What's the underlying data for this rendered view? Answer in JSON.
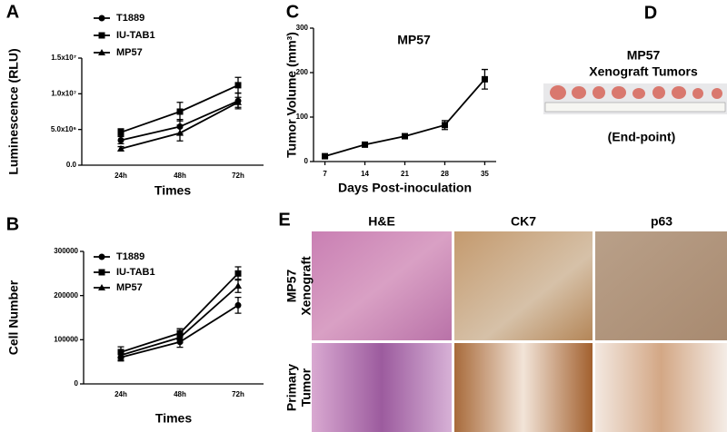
{
  "chart_data": [
    {
      "panel": "A",
      "type": "line",
      "y_label": "Luminescence (RLU)",
      "x_label": "Times",
      "categories": [
        "24h",
        "48h",
        "72h"
      ],
      "ylim": [
        0,
        15000000
      ],
      "yticks": [
        {
          "value": 0,
          "label": "0.0"
        },
        {
          "value": 5000000,
          "label": "5.0x10⁶"
        },
        {
          "value": 10000000,
          "label": "1.0x10⁷"
        },
        {
          "value": 15000000,
          "label": "1.5x10⁷"
        }
      ],
      "legend": "upper left",
      "series": [
        {
          "name": "T1889",
          "color": "#000000",
          "marker": "circle",
          "values": [
            3500000,
            5400000,
            9000000
          ],
          "errors": [
            500000,
            1000000,
            1100000
          ]
        },
        {
          "name": "IU-TAB1",
          "color": "#000000",
          "marker": "square",
          "values": [
            4600000,
            7500000,
            11200000
          ],
          "errors": [
            500000,
            1300000,
            1100000
          ]
        },
        {
          "name": "MP57",
          "color": "#000000",
          "marker": "triangle",
          "values": [
            2300000,
            4500000,
            8800000
          ],
          "errors": [
            300000,
            1100000,
            700000
          ]
        }
      ]
    },
    {
      "panel": "B",
      "type": "line",
      "y_label": "Cell Number",
      "x_label": "Times",
      "categories": [
        "24h",
        "48h",
        "72h"
      ],
      "ylim": [
        0,
        300000
      ],
      "yticks": [
        0,
        100000,
        200000,
        300000
      ],
      "legend": "upper left",
      "series": [
        {
          "name": "T1889",
          "color": "#000000",
          "marker": "circle",
          "values": [
            60000,
            95000,
            178000
          ],
          "errors": [
            8000,
            12000,
            18000
          ]
        },
        {
          "name": "IU-TAB1",
          "color": "#000000",
          "marker": "square",
          "values": [
            72000,
            115000,
            250000
          ],
          "errors": [
            12000,
            10000,
            15000
          ]
        },
        {
          "name": "MP57",
          "color": "#000000",
          "marker": "triangle",
          "values": [
            65000,
            105000,
            222000
          ],
          "errors": [
            10000,
            12000,
            15000
          ]
        }
      ]
    },
    {
      "panel": "C",
      "type": "line",
      "title": "MP57",
      "y_label": "Tumor Volume (mm³)",
      "x_label": "Days Post-inoculation",
      "x": [
        7,
        14,
        21,
        28,
        35
      ],
      "xlim": [
        5,
        37
      ],
      "xticks": [
        7,
        14,
        21,
        28,
        35
      ],
      "ylim": [
        0,
        300
      ],
      "yticks": [
        0,
        100,
        200,
        300
      ],
      "series": [
        {
          "color": "#000000",
          "marker": "square",
          "values": [
            12,
            38,
            57,
            82,
            185
          ],
          "errors": [
            3,
            4,
            5,
            10,
            22
          ]
        }
      ]
    }
  ],
  "panel_d": {
    "panel": "D",
    "title": "MP57",
    "subtitle": "Xenograft Tumors",
    "caption": "(End-point)"
  },
  "panel_e": {
    "panel": "E",
    "columns": [
      "H&E",
      "CK7",
      "p63"
    ],
    "rows": [
      [
        "MP57",
        "Xenograft"
      ],
      [
        "Primary",
        "Tumor"
      ]
    ]
  }
}
